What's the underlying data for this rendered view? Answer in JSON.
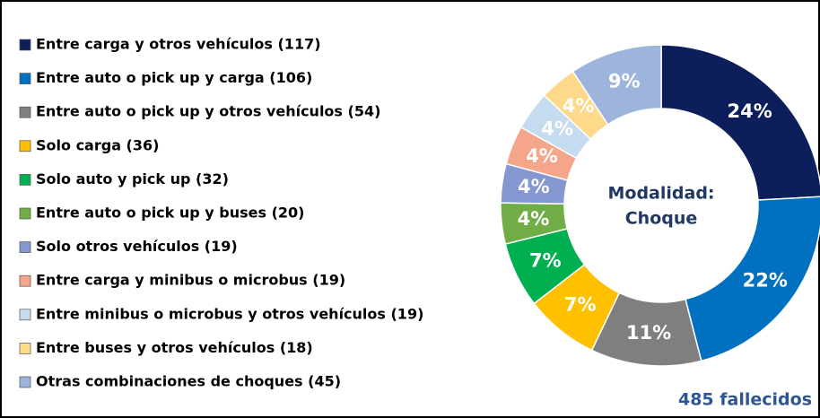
{
  "chart_data": {
    "type": "pie",
    "categories": [
      "Entre carga y otros vehículos (117)",
      "Entre auto o pick up y carga (106)",
      "Entre auto o pick up y otros vehículos (54)",
      "Solo carga (36)",
      "Solo auto y pick up (32)",
      "Entre auto o pick up y buses (20)",
      "Solo otros vehículos (19)",
      "Entre carga y minibus o microbus (19)",
      "Entre minibus o microbus y otros vehículos (19)",
      "Entre buses y otros vehículos (18)",
      "Otras combinaciones de choques (45)"
    ],
    "values": [
      117,
      106,
      54,
      36,
      32,
      20,
      19,
      19,
      19,
      18,
      45
    ],
    "value_labels": [
      "24%",
      "22%",
      "11%",
      "7%",
      "7%",
      "4%",
      "4%",
      "4%",
      "4%",
      "4%",
      "9%"
    ],
    "colors": [
      "#0c1f5b",
      "#0070c0",
      "#7f7f7f",
      "#ffc000",
      "#00b050",
      "#70ad47",
      "#8497d0",
      "#f4a58a",
      "#c5dcf0",
      "#ffd98a",
      "#9db5dd"
    ],
    "center_label": [
      "Modalidad:",
      "Choque"
    ],
    "annotation": "485 fallecidos",
    "donut": true,
    "legend": "left"
  }
}
